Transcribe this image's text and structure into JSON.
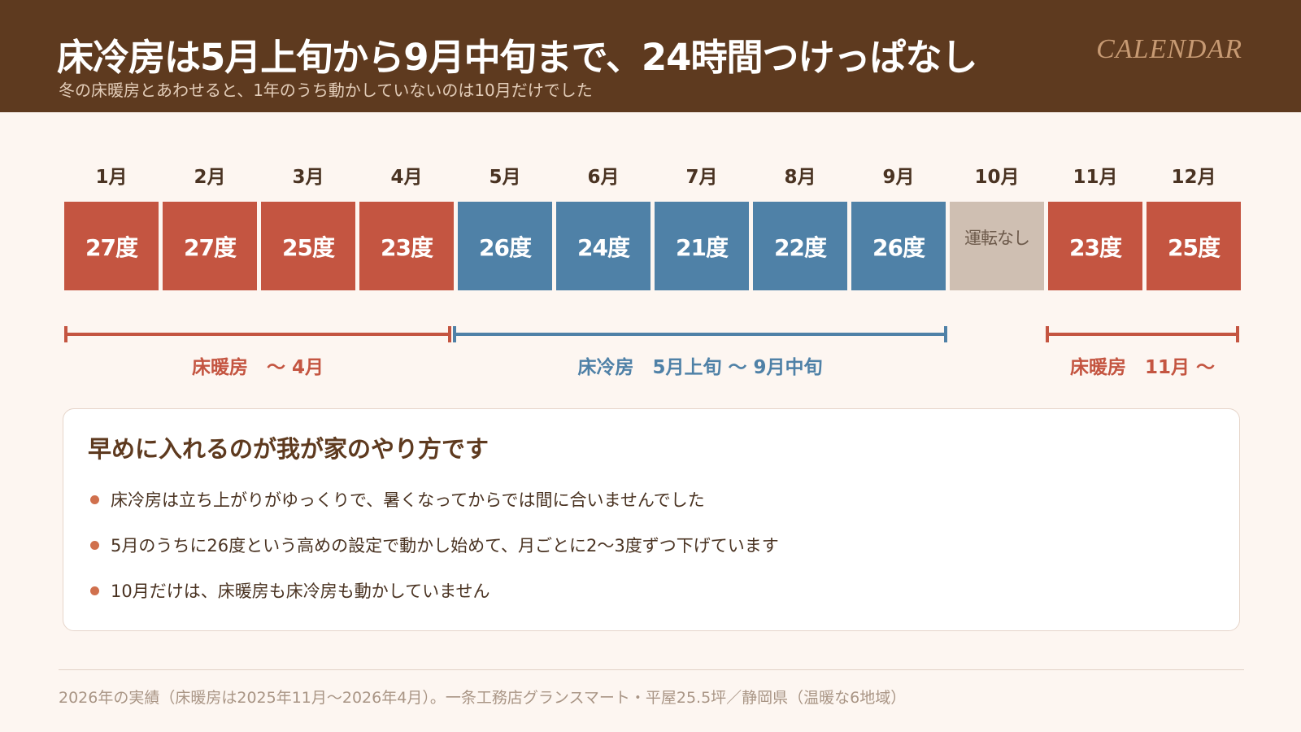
{
  "header": {
    "title": "床冷房は5月上旬から9月中旬まで、24時間つけっぱなし",
    "subtitle": "冬の床暖房とあわせると、1年のうち動かしていないのは10月だけでした",
    "brand": "CALENDAR"
  },
  "calendar": {
    "months": [
      {
        "label": "1月",
        "value": "27度",
        "mode": "heat"
      },
      {
        "label": "2月",
        "value": "27度",
        "mode": "heat"
      },
      {
        "label": "3月",
        "value": "25度",
        "mode": "heat"
      },
      {
        "label": "4月",
        "value": "23度",
        "mode": "heat"
      },
      {
        "label": "5月",
        "value": "26度",
        "mode": "cool"
      },
      {
        "label": "6月",
        "value": "24度",
        "mode": "cool"
      },
      {
        "label": "7月",
        "value": "21度",
        "mode": "cool"
      },
      {
        "label": "8月",
        "value": "22度",
        "mode": "cool"
      },
      {
        "label": "9月",
        "value": "26度",
        "mode": "cool"
      },
      {
        "label": "10月",
        "value": "運転なし",
        "mode": "off"
      },
      {
        "label": "11月",
        "value": "23度",
        "mode": "heat"
      },
      {
        "label": "12月",
        "value": "25度",
        "mode": "heat"
      }
    ]
  },
  "ranges": {
    "heating_winter": "床暖房　～ 4月",
    "cooling": "床冷房　5月上旬 ～ 9月中旬",
    "heating_autumn": "床暖房　11月 ～"
  },
  "colors": {
    "heat": "#c45541",
    "cool": "#4f81a7",
    "off": "#cfbfb2",
    "header_bg": "#5e3a1f"
  },
  "card": {
    "title": "早めに入れるのが我が家のやり方です",
    "bullets": [
      "床冷房は立ち上がりがゆっくりで、暑くなってからでは間に合いませんでした",
      "5月のうちに26度という高めの設定で動かし始めて、月ごとに2～3度ずつ下げています",
      "10月だけは、床暖房も床冷房も動かしていません"
    ]
  },
  "footer": {
    "note": "2026年の実績（床暖房は2025年11月～2026年4月）。一条工務店グランスマート・平屋25.5坪／静岡県（温暖な6地域）"
  }
}
